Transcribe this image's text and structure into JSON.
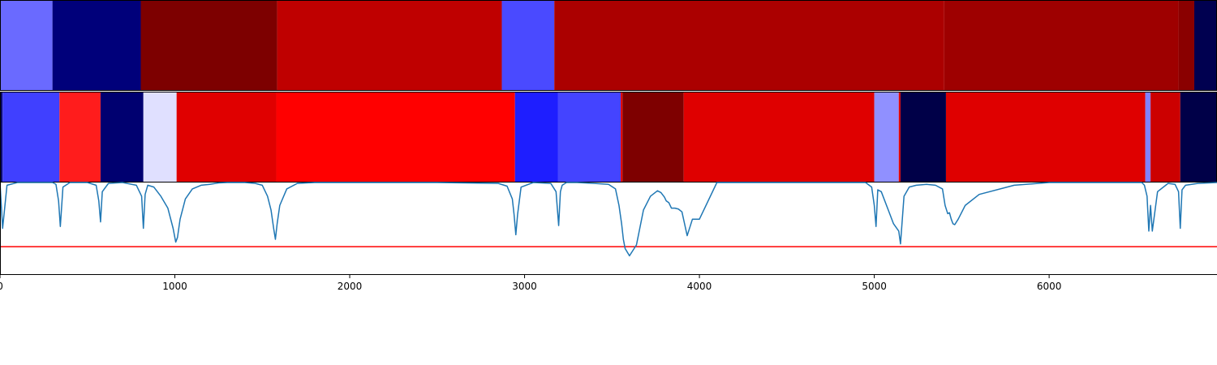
{
  "chart_data": {
    "type": "heatmap",
    "xlim": [
      0,
      6960
    ],
    "x_ticks": [
      "0",
      "1000",
      "2000",
      "3000",
      "4000",
      "5000",
      "6000"
    ],
    "x_tick_values": [
      0,
      1000,
      2000,
      3000,
      4000,
      5000,
      6000
    ],
    "top_track": {
      "segments": [
        {
          "start": 0,
          "end": 300,
          "color": "#6a6aff"
        },
        {
          "start": 300,
          "end": 805,
          "color": "#00007a"
        },
        {
          "start": 805,
          "end": 1585,
          "color": "#7d0000"
        },
        {
          "start": 1585,
          "end": 2870,
          "color": "#bf0000"
        },
        {
          "start": 2870,
          "end": 3170,
          "color": "#4a4aff"
        },
        {
          "start": 3170,
          "end": 5400,
          "color": "#ab0000"
        },
        {
          "start": 5400,
          "end": 6740,
          "color": "#9e0000"
        },
        {
          "start": 6740,
          "end": 6830,
          "color": "#8a0000"
        },
        {
          "start": 6830,
          "end": 6960,
          "color": "#000050"
        }
      ]
    },
    "middle_track": {
      "segments": [
        {
          "start": 0,
          "end": 15,
          "color": "#0a0a70"
        },
        {
          "start": 15,
          "end": 340,
          "color": "#4040ff"
        },
        {
          "start": 340,
          "end": 575,
          "color": "#ff1c1c"
        },
        {
          "start": 575,
          "end": 820,
          "color": "#000070"
        },
        {
          "start": 820,
          "end": 1010,
          "color": "#e0e0ff"
        },
        {
          "start": 1010,
          "end": 1580,
          "color": "#e00000"
        },
        {
          "start": 1580,
          "end": 2945,
          "color": "#ff0000"
        },
        {
          "start": 2945,
          "end": 3190,
          "color": "#1e1eff"
        },
        {
          "start": 3190,
          "end": 3550,
          "color": "#4444ff"
        },
        {
          "start": 3550,
          "end": 3560,
          "color": "#e00000"
        },
        {
          "start": 3560,
          "end": 3910,
          "color": "#7e0000"
        },
        {
          "start": 3910,
          "end": 5000,
          "color": "#df0000"
        },
        {
          "start": 5000,
          "end": 5140,
          "color": "#9090ff"
        },
        {
          "start": 5140,
          "end": 5150,
          "color": "#e00000"
        },
        {
          "start": 5150,
          "end": 5410,
          "color": "#000048"
        },
        {
          "start": 5410,
          "end": 6550,
          "color": "#df0000"
        },
        {
          "start": 6550,
          "end": 6580,
          "color": "#8080ff"
        },
        {
          "start": 6580,
          "end": 6750,
          "color": "#cc0000"
        },
        {
          "start": 6750,
          "end": 6960,
          "color": "#000048"
        }
      ]
    },
    "line_track": {
      "series_color": "#1f77b4",
      "threshold_color": "#ff0000",
      "ylim": [
        0,
        1
      ],
      "threshold": 0.3,
      "x": [
        0,
        15,
        40,
        100,
        200,
        300,
        320,
        335,
        345,
        360,
        400,
        500,
        550,
        565,
        575,
        585,
        620,
        700,
        780,
        810,
        820,
        830,
        845,
        880,
        920,
        960,
        990,
        1005,
        1015,
        1030,
        1060,
        1100,
        1150,
        1200,
        1250,
        1300,
        1400,
        1460,
        1500,
        1530,
        1550,
        1565,
        1575,
        1585,
        1600,
        1640,
        1700,
        1800,
        2000,
        2500,
        2850,
        2900,
        2930,
        2940,
        2950,
        2960,
        2980,
        3050,
        3150,
        3180,
        3195,
        3205,
        3215,
        3240,
        3300,
        3400,
        3480,
        3520,
        3540,
        3555,
        3565,
        3575,
        3600,
        3640,
        3680,
        3720,
        3760,
        3780,
        3800,
        3810,
        3825,
        3840,
        3860,
        3880,
        3900,
        3915,
        3930,
        3960,
        4000,
        4100,
        4500,
        4950,
        4985,
        5000,
        5010,
        5020,
        5040,
        5080,
        5110,
        5140,
        5150,
        5170,
        5200,
        5240,
        5300,
        5350,
        5390,
        5405,
        5420,
        5430,
        5440,
        5450,
        5460,
        5480,
        5520,
        5600,
        5800,
        6000,
        6400,
        6500,
        6530,
        6545,
        6560,
        6570,
        6580,
        6590,
        6620,
        6680,
        6720,
        6740,
        6750,
        6760,
        6780,
        6850,
        6960
      ],
      "y": [
        1.0,
        0.5,
        0.97,
        1.0,
        1.0,
        1.0,
        0.98,
        0.8,
        0.52,
        0.95,
        1.0,
        1.0,
        0.97,
        0.8,
        0.57,
        0.9,
        0.99,
        1.0,
        0.97,
        0.85,
        0.5,
        0.87,
        0.97,
        0.95,
        0.85,
        0.72,
        0.5,
        0.35,
        0.4,
        0.6,
        0.82,
        0.93,
        0.97,
        0.98,
        0.995,
        1.0,
        1.0,
        0.99,
        0.97,
        0.85,
        0.7,
        0.5,
        0.38,
        0.55,
        0.75,
        0.93,
        0.99,
        1.0,
        1.0,
        1.0,
        0.99,
        0.96,
        0.82,
        0.65,
        0.43,
        0.65,
        0.95,
        1.0,
        0.99,
        0.9,
        0.53,
        0.9,
        0.97,
        1.0,
        1.0,
        0.99,
        0.98,
        0.93,
        0.75,
        0.55,
        0.38,
        0.28,
        0.2,
        0.32,
        0.7,
        0.85,
        0.91,
        0.89,
        0.84,
        0.8,
        0.78,
        0.72,
        0.72,
        0.71,
        0.68,
        0.55,
        0.42,
        0.6,
        0.6,
        1.0,
        1.0,
        1.0,
        0.95,
        0.75,
        0.52,
        0.92,
        0.9,
        0.7,
        0.55,
        0.47,
        0.33,
        0.85,
        0.95,
        0.97,
        0.98,
        0.97,
        0.93,
        0.75,
        0.66,
        0.67,
        0.6,
        0.55,
        0.54,
        0.6,
        0.75,
        0.87,
        0.97,
        1.0,
        1.0,
        1.0,
        1.0,
        0.97,
        0.85,
        0.47,
        0.75,
        0.47,
        0.9,
        0.99,
        0.98,
        0.9,
        0.5,
        0.92,
        0.97,
        0.99,
        1.0
      ]
    }
  }
}
